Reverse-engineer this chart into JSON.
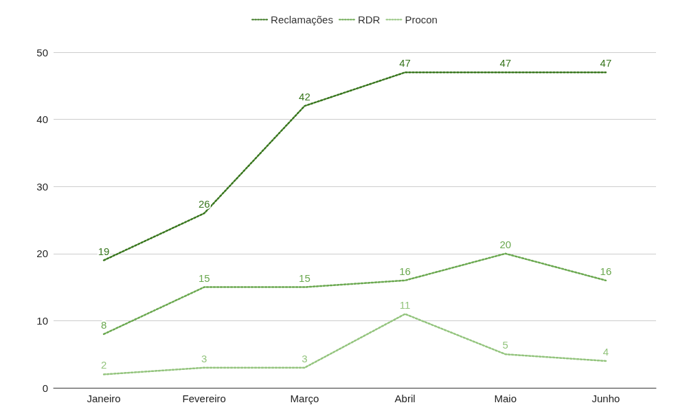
{
  "chart_data": {
    "type": "line",
    "categories": [
      "Janeiro",
      "Fevereiro",
      "Março",
      "Abril",
      "Maio",
      "Junho"
    ],
    "series": [
      {
        "name": "Reclamações",
        "color": "#38761d",
        "values": [
          19,
          26,
          42,
          47,
          47,
          47
        ]
      },
      {
        "name": "RDR",
        "color": "#6aa84f",
        "values": [
          8,
          15,
          15,
          16,
          20,
          16
        ]
      },
      {
        "name": "Procon",
        "color": "#93c47d",
        "values": [
          2,
          3,
          3,
          11,
          5,
          4
        ]
      }
    ],
    "ylim": [
      0,
      50
    ],
    "yticks": [
      0,
      10,
      20,
      30,
      40,
      50
    ],
    "grid": "y",
    "legend": "top",
    "marker": "none",
    "line_style": "dotted",
    "data_labels": true
  }
}
